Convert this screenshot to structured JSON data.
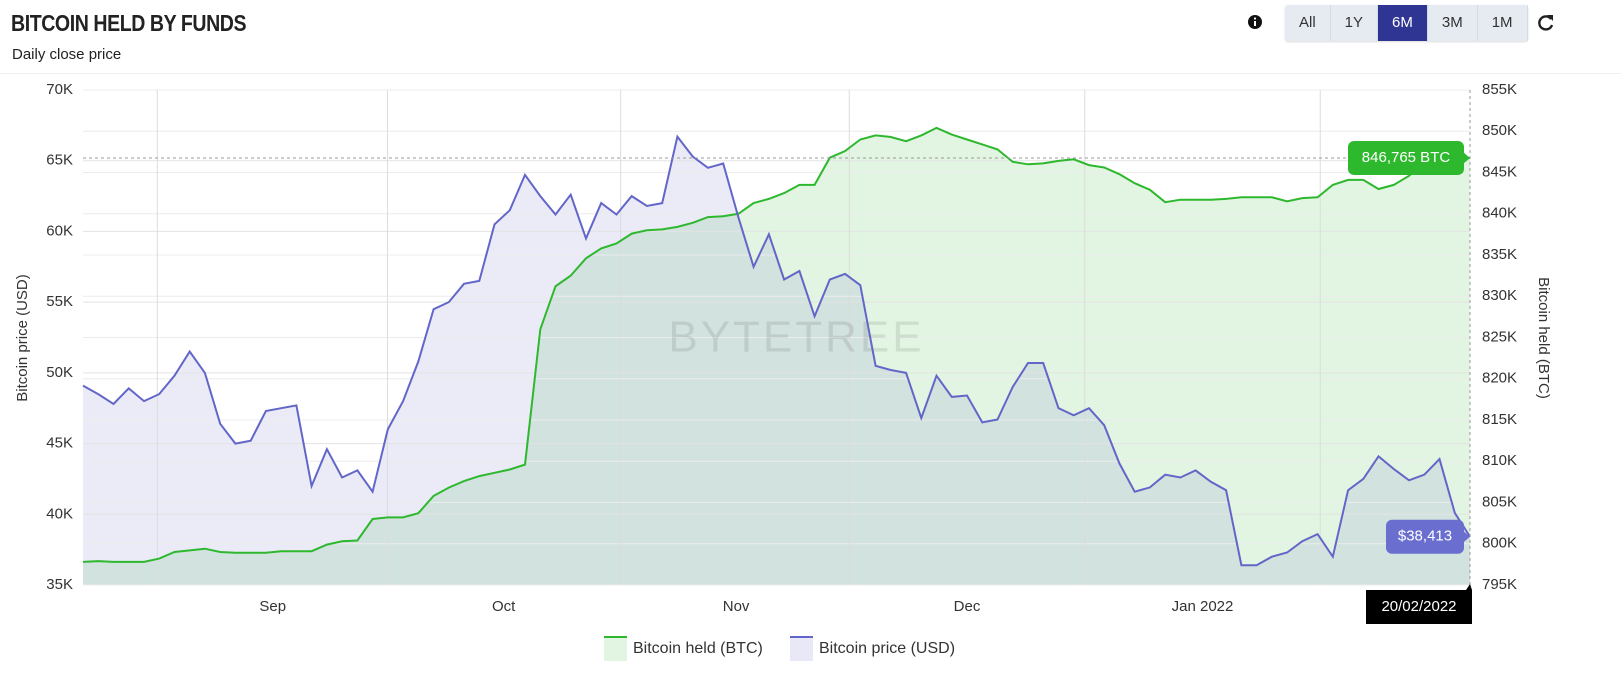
{
  "header": {
    "title": "BITCOIN HELD BY FUNDS",
    "subtitle": "Daily close price",
    "range_buttons": [
      "All",
      "1Y",
      "6M",
      "3M",
      "1M"
    ],
    "active_range": "6M"
  },
  "chart_data": {
    "type": "line",
    "area": true,
    "watermark": "BYTETREE",
    "crosshair_label": "20/02/2022",
    "y_label": "Bitcoin price (USD)",
    "y2_label": "Bitcoin held (BTC)",
    "grid": true,
    "x": [
      0,
      2,
      4,
      6,
      8,
      10,
      12,
      14,
      16,
      18,
      20,
      22,
      24,
      26,
      28,
      30,
      32,
      34,
      36,
      38,
      40,
      42,
      44,
      46,
      48,
      50,
      52,
      54,
      56,
      58,
      60,
      62,
      64,
      66,
      68,
      70,
      72,
      74,
      76,
      78,
      80,
      82,
      84,
      86,
      88,
      90,
      92,
      94,
      96,
      98,
      100,
      102,
      104,
      106,
      108,
      110,
      112,
      114,
      116,
      118,
      120,
      122,
      124,
      126,
      128,
      130,
      132,
      134,
      136,
      138,
      140,
      142,
      144,
      146,
      148,
      150,
      152,
      154,
      156,
      158,
      160,
      162,
      164,
      166,
      168,
      170,
      172,
      174,
      176,
      178,
      180,
      182
    ],
    "xlim": [
      0,
      182
    ],
    "xticks": [
      {
        "value": 24.9,
        "label": "Sep"
      },
      {
        "value": 55.2,
        "label": "Oct"
      },
      {
        "value": 85.7,
        "label": "Nov"
      },
      {
        "value": 116,
        "label": "Dec"
      },
      {
        "value": 146.9,
        "label": "Jan 2022"
      }
    ],
    "ylim": [
      35000,
      70000
    ],
    "yticks": [
      {
        "value": 35000,
        "label": "35K"
      },
      {
        "value": 40000,
        "label": "40K"
      },
      {
        "value": 45000,
        "label": "45K"
      },
      {
        "value": 50000,
        "label": "50K"
      },
      {
        "value": 55000,
        "label": "55K"
      },
      {
        "value": 60000,
        "label": "60K"
      },
      {
        "value": 65000,
        "label": "65K"
      },
      {
        "value": 70000,
        "label": "70K"
      }
    ],
    "y2lim": [
      795000,
      855000
    ],
    "y2ticks": [
      {
        "value": 795000,
        "label": "795K"
      },
      {
        "value": 800000,
        "label": "800K"
      },
      {
        "value": 805000,
        "label": "805K"
      },
      {
        "value": 810000,
        "label": "810K"
      },
      {
        "value": 815000,
        "label": "815K"
      },
      {
        "value": 820000,
        "label": "820K"
      },
      {
        "value": 825000,
        "label": "825K"
      },
      {
        "value": 830000,
        "label": "830K"
      },
      {
        "value": 835000,
        "label": "835K"
      },
      {
        "value": 840000,
        "label": "840K"
      },
      {
        "value": 845000,
        "label": "845K"
      },
      {
        "value": 850000,
        "label": "850K"
      },
      {
        "value": 855000,
        "label": "855K"
      }
    ],
    "series": [
      {
        "name": "Bitcoin held (BTC)",
        "axis": "y2",
        "color": "#2eb82e",
        "fill": "#e2f5e2",
        "values": [
          797800,
          797900,
          797800,
          797800,
          797800,
          798200,
          799000,
          799200,
          799400,
          799000,
          798900,
          798900,
          798900,
          799100,
          799100,
          799100,
          799900,
          800300,
          800400,
          803000,
          803200,
          803200,
          803700,
          805800,
          806800,
          807600,
          808200,
          808600,
          809000,
          809600,
          826000,
          831200,
          832500,
          834600,
          835800,
          836400,
          837600,
          838000,
          838100,
          838400,
          838900,
          839600,
          839700,
          840000,
          841300,
          841800,
          842500,
          843500,
          843500,
          846800,
          847600,
          849000,
          849500,
          849300,
          848800,
          849500,
          850400,
          849600,
          849000,
          848400,
          847800,
          846300,
          846000,
          846100,
          846400,
          846600,
          845900,
          845600,
          844800,
          843700,
          842900,
          841400,
          841700,
          841700,
          841700,
          841800,
          842000,
          842000,
          842000,
          841500,
          841900,
          842000,
          843500,
          844100,
          844100,
          843000,
          843500,
          844600,
          846200,
          846500,
          846700,
          846765
        ],
        "value_labels": [
          null,
          null,
          null,
          null,
          null,
          null,
          null,
          null,
          null,
          null,
          null,
          null,
          null,
          null,
          null,
          null,
          null,
          null,
          null,
          null,
          null,
          null,
          null,
          null,
          null,
          null,
          null,
          null,
          null,
          null,
          null,
          null,
          null,
          null,
          null,
          null,
          null,
          null,
          null,
          null,
          null,
          null,
          null,
          null,
          null,
          null,
          null,
          null,
          null,
          null,
          null,
          null,
          null,
          null,
          null,
          null,
          null,
          null,
          null,
          null,
          null,
          null,
          null,
          null,
          null,
          null,
          null,
          null,
          null,
          null,
          null,
          null,
          null,
          null,
          null,
          null,
          null,
          null,
          null,
          null,
          null,
          null,
          null,
          null,
          null,
          null,
          null,
          null,
          null,
          null,
          null,
          "846,765 BTC"
        ]
      },
      {
        "name": "Bitcoin price (USD)",
        "color": "#6266c8",
        "fill": "rgba(120,120,210,0.15)",
        "values": [
          49100,
          48500,
          47800,
          48900,
          48000,
          48500,
          49800,
          51500,
          50000,
          46400,
          45000,
          45200,
          47300,
          47500,
          47700,
          42000,
          44600,
          42600,
          43100,
          41600,
          46000,
          48000,
          50800,
          54500,
          55000,
          56300,
          56500,
          60500,
          61500,
          64000,
          62500,
          61200,
          62600,
          59500,
          62000,
          61200,
          62500,
          61800,
          62000,
          66700,
          65300,
          64500,
          64800,
          61000,
          57500,
          59800,
          56600,
          57200,
          54000,
          56600,
          57000,
          56200,
          50500,
          50200,
          50000,
          46800,
          49800,
          48300,
          48400,
          46500,
          46700,
          49000,
          50700,
          50700,
          47500,
          47000,
          47500,
          46300,
          43600,
          41600,
          41900,
          42800,
          42600,
          43100,
          42300,
          41700,
          36400,
          36400,
          37000,
          37300,
          38100,
          38600,
          37000,
          41700,
          42500,
          44100,
          43200,
          42400,
          42800,
          43900,
          40100,
          38413
        ],
        "value_labels": [
          null,
          null,
          null,
          null,
          null,
          null,
          null,
          null,
          null,
          null,
          null,
          null,
          null,
          null,
          null,
          null,
          null,
          null,
          null,
          null,
          null,
          null,
          null,
          null,
          null,
          null,
          null,
          null,
          null,
          null,
          null,
          null,
          null,
          null,
          null,
          null,
          null,
          null,
          null,
          null,
          null,
          null,
          null,
          null,
          null,
          null,
          null,
          null,
          null,
          null,
          null,
          null,
          null,
          null,
          null,
          null,
          null,
          null,
          null,
          null,
          null,
          null,
          null,
          null,
          null,
          null,
          null,
          null,
          null,
          null,
          null,
          null,
          null,
          null,
          null,
          null,
          null,
          null,
          null,
          null,
          null,
          null,
          null,
          null,
          null,
          null,
          null,
          null,
          null,
          null,
          null,
          "$38,413"
        ]
      }
    ]
  }
}
